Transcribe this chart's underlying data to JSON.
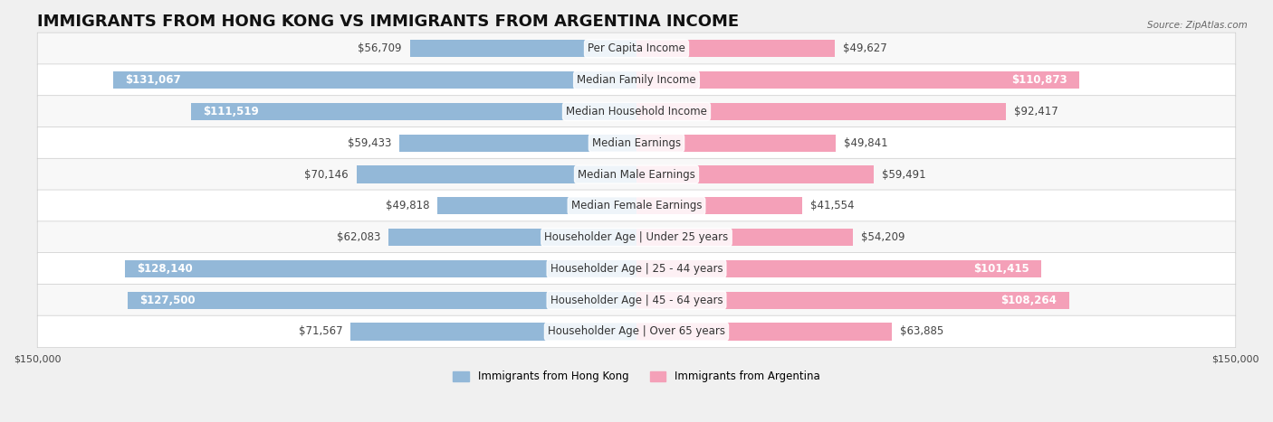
{
  "title": "IMMIGRANTS FROM HONG KONG VS IMMIGRANTS FROM ARGENTINA INCOME",
  "source": "Source: ZipAtlas.com",
  "categories": [
    "Per Capita Income",
    "Median Family Income",
    "Median Household Income",
    "Median Earnings",
    "Median Male Earnings",
    "Median Female Earnings",
    "Householder Age | Under 25 years",
    "Householder Age | 25 - 44 years",
    "Householder Age | 45 - 64 years",
    "Householder Age | Over 65 years"
  ],
  "hk_values": [
    56709,
    131067,
    111519,
    59433,
    70146,
    49818,
    62083,
    128140,
    127500,
    71567
  ],
  "arg_values": [
    49627,
    110873,
    92417,
    49841,
    59491,
    41554,
    54209,
    101415,
    108264,
    63885
  ],
  "hk_labels": [
    "$56,709",
    "$131,067",
    "$111,519",
    "$59,433",
    "$70,146",
    "$49,818",
    "$62,083",
    "$128,140",
    "$127,500",
    "$71,567"
  ],
  "arg_labels": [
    "$49,627",
    "$110,873",
    "$92,417",
    "$49,841",
    "$59,491",
    "$41,554",
    "$54,209",
    "$101,415",
    "$108,264",
    "$63,885"
  ],
  "hk_color": "#93b8d8",
  "hk_color_dark": "#6aa0c8",
  "arg_color": "#f4a0b8",
  "arg_color_dark": "#e8709a",
  "max_val": 150000,
  "legend_hk": "Immigrants from Hong Kong",
  "legend_arg": "Immigrants from Argentina",
  "background_color": "#f0f0f0",
  "row_bg_color": "#f8f8f8",
  "row_bg_color_alt": "#ffffff",
  "title_fontsize": 13,
  "label_fontsize": 8.5,
  "category_fontsize": 8.5,
  "axis_label_fontsize": 8,
  "hk_label_threshold": 100000,
  "arg_label_threshold": 100000
}
